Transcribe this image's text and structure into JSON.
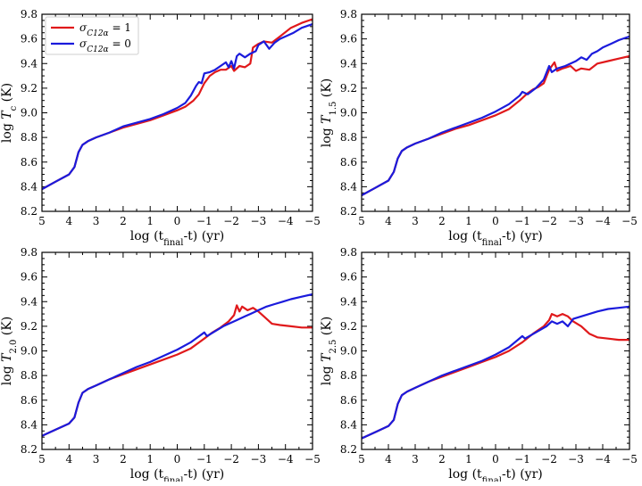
{
  "chart_data": [
    {
      "type": "line",
      "panel": "top-left",
      "ylabel": "log T_c (K)",
      "ylabel_main": "log ",
      "ylabel_sym": "T",
      "ylabel_sub": "c",
      "ylabel_unit": " (K)",
      "xlabel_pre": "log (t",
      "xlabel_sub": "final",
      "xlabel_post": "-t) (yr)",
      "xlim": [
        5,
        -5
      ],
      "ylim": [
        8.2,
        9.8
      ],
      "xticks": [
        "5",
        "4",
        "3",
        "2",
        "1",
        "0",
        "−1",
        "−2",
        "−3",
        "−4",
        "−5"
      ],
      "yticks": [
        "8.2",
        "8.4",
        "8.6",
        "8.8",
        "9.0",
        "9.2",
        "9.4",
        "9.6",
        "9.8"
      ],
      "legend": {
        "placement": "top-left",
        "entries": [
          {
            "sym": "σ",
            "sub": "C12α",
            "rest": " = 1",
            "color": "#e0191b"
          },
          {
            "sym": "σ",
            "sub": "C12α",
            "rest": " = 0",
            "color": "#1b1bdc"
          }
        ]
      },
      "series": [
        {
          "name": "σC12α = 1",
          "color": "#e0191b",
          "x": [
            5,
            4.5,
            4,
            3.8,
            3.65,
            3.5,
            3.3,
            3,
            2.5,
            2,
            1.5,
            1,
            0.5,
            0,
            -0.3,
            -0.6,
            -0.8,
            -1,
            -1.2,
            -1.4,
            -1.6,
            -1.8,
            -2,
            -2.1,
            -2.3,
            -2.5,
            -2.7,
            -2.8,
            -3,
            -3.2,
            -3.5,
            -3.8,
            -4.2,
            -4.6,
            -5
          ],
          "y": [
            8.38,
            8.44,
            8.5,
            8.56,
            8.68,
            8.74,
            8.77,
            8.8,
            8.84,
            8.88,
            8.91,
            8.94,
            8.98,
            9.02,
            9.05,
            9.1,
            9.15,
            9.24,
            9.3,
            9.33,
            9.35,
            9.35,
            9.38,
            9.34,
            9.38,
            9.37,
            9.4,
            9.53,
            9.56,
            9.58,
            9.57,
            9.62,
            9.69,
            9.73,
            9.76
          ]
        },
        {
          "name": "σC12α = 0",
          "color": "#1b1bdc",
          "x": [
            5,
            4.5,
            4,
            3.8,
            3.65,
            3.5,
            3.3,
            3,
            2.5,
            2,
            1.5,
            1,
            0.5,
            0,
            -0.3,
            -0.5,
            -0.7,
            -0.8,
            -0.9,
            -1,
            -1.2,
            -1.4,
            -1.6,
            -1.8,
            -1.9,
            -2,
            -2.1,
            -2.2,
            -2.3,
            -2.5,
            -2.7,
            -2.9,
            -3,
            -3.2,
            -3.4,
            -3.6,
            -3.8,
            -4,
            -4.3,
            -4.6,
            -5
          ],
          "y": [
            8.38,
            8.44,
            8.5,
            8.56,
            8.68,
            8.74,
            8.77,
            8.8,
            8.84,
            8.89,
            8.92,
            8.95,
            8.99,
            9.04,
            9.08,
            9.14,
            9.22,
            9.25,
            9.24,
            9.32,
            9.33,
            9.35,
            9.38,
            9.41,
            9.37,
            9.42,
            9.36,
            9.46,
            9.48,
            9.45,
            9.48,
            9.5,
            9.55,
            9.58,
            9.52,
            9.57,
            9.6,
            9.62,
            9.65,
            9.69,
            9.72
          ]
        }
      ]
    },
    {
      "type": "line",
      "panel": "top-right",
      "ylabel": "log T_1.5 (K)",
      "ylabel_main": "log ",
      "ylabel_sym": "T",
      "ylabel_sub": "1.5",
      "ylabel_unit": " (K)",
      "xlabel_pre": "log (t",
      "xlabel_sub": "final",
      "xlabel_post": "-t) (yr)",
      "xlim": [
        5,
        -5
      ],
      "ylim": [
        8.2,
        9.8
      ],
      "xticks": [
        "5",
        "4",
        "3",
        "2",
        "1",
        "0",
        "−1",
        "−2",
        "−3",
        "−4",
        "−5"
      ],
      "yticks": [
        "8.2",
        "8.4",
        "8.6",
        "8.8",
        "9.0",
        "9.2",
        "9.4",
        "9.6",
        "9.8"
      ],
      "series": [
        {
          "name": "σC12α = 1",
          "color": "#e0191b",
          "x": [
            5,
            4.5,
            4,
            3.8,
            3.65,
            3.5,
            3.3,
            3,
            2.5,
            2,
            1.5,
            1,
            0.5,
            0,
            -0.5,
            -0.9,
            -1.2,
            -1.4,
            -1.6,
            -1.8,
            -2,
            -2.2,
            -2.3,
            -2.5,
            -2.8,
            -3,
            -3.2,
            -3.5,
            -3.8,
            -4.2,
            -4.6,
            -5
          ],
          "y": [
            8.33,
            8.39,
            8.45,
            8.52,
            8.63,
            8.69,
            8.72,
            8.75,
            8.79,
            8.83,
            8.87,
            8.9,
            8.94,
            8.98,
            9.03,
            9.1,
            9.16,
            9.19,
            9.21,
            9.24,
            9.35,
            9.41,
            9.34,
            9.36,
            9.38,
            9.34,
            9.36,
            9.35,
            9.4,
            9.42,
            9.44,
            9.46
          ]
        },
        {
          "name": "σC12α = 0",
          "color": "#1b1bdc",
          "x": [
            5,
            4.5,
            4,
            3.8,
            3.65,
            3.5,
            3.3,
            3,
            2.5,
            2,
            1.5,
            1,
            0.5,
            0,
            -0.5,
            -0.9,
            -1,
            -1.2,
            -1.5,
            -1.8,
            -2,
            -2.1,
            -2.3,
            -2.6,
            -2.8,
            -3,
            -3.2,
            -3.4,
            -3.6,
            -3.8,
            -4,
            -4.3,
            -4.6,
            -5
          ],
          "y": [
            8.33,
            8.39,
            8.45,
            8.52,
            8.63,
            8.69,
            8.72,
            8.75,
            8.79,
            8.84,
            8.88,
            8.92,
            8.96,
            9.01,
            9.07,
            9.14,
            9.17,
            9.15,
            9.2,
            9.27,
            9.38,
            9.33,
            9.36,
            9.38,
            9.4,
            9.42,
            9.45,
            9.43,
            9.48,
            9.5,
            9.53,
            9.56,
            9.59,
            9.62
          ]
        }
      ]
    },
    {
      "type": "line",
      "panel": "bottom-left",
      "ylabel": "log T_2.0 (K)",
      "ylabel_main": "log ",
      "ylabel_sym": "T",
      "ylabel_sub": "2.0",
      "ylabel_unit": " (K)",
      "xlabel_pre": "log (t",
      "xlabel_sub": "final",
      "xlabel_post": "-t) (yr)",
      "xlim": [
        5,
        -5
      ],
      "ylim": [
        8.2,
        9.8
      ],
      "xticks": [
        "5",
        "4",
        "3",
        "2",
        "1",
        "0",
        "−1",
        "−2",
        "−3",
        "−4",
        "−5"
      ],
      "yticks": [
        "8.2",
        "8.4",
        "8.6",
        "8.8",
        "9.0",
        "9.2",
        "9.4",
        "9.6",
        "9.8"
      ],
      "series": [
        {
          "name": "σC12α = 1",
          "color": "#e0191b",
          "x": [
            5,
            4.5,
            4,
            3.8,
            3.65,
            3.5,
            3.3,
            3,
            2.5,
            2,
            1.5,
            1,
            0.5,
            0,
            -0.5,
            -1,
            -1.3,
            -1.6,
            -1.9,
            -2.1,
            -2.2,
            -2.3,
            -2.4,
            -2.6,
            -2.8,
            -3,
            -3.2,
            -3.5,
            -3.8,
            -4.2,
            -4.6,
            -5
          ],
          "y": [
            8.31,
            8.36,
            8.41,
            8.46,
            8.58,
            8.66,
            8.69,
            8.72,
            8.77,
            8.81,
            8.85,
            8.89,
            8.93,
            8.97,
            9.02,
            9.1,
            9.15,
            9.19,
            9.24,
            9.29,
            9.37,
            9.32,
            9.36,
            9.33,
            9.35,
            9.32,
            9.28,
            9.22,
            9.21,
            9.2,
            9.19,
            9.19
          ]
        },
        {
          "name": "σC12α = 0",
          "color": "#1b1bdc",
          "x": [
            5,
            4.5,
            4,
            3.8,
            3.65,
            3.5,
            3.3,
            3,
            2.5,
            2,
            1.5,
            1,
            0.5,
            0,
            -0.5,
            -1,
            -1.1,
            -1.4,
            -1.7,
            -2,
            -2.2,
            -2.5,
            -2.7,
            -3,
            -3.3,
            -3.6,
            -3.9,
            -4.2,
            -4.6,
            -5
          ],
          "y": [
            8.31,
            8.36,
            8.41,
            8.46,
            8.58,
            8.66,
            8.69,
            8.72,
            8.77,
            8.82,
            8.87,
            8.91,
            8.96,
            9.01,
            9.07,
            9.15,
            9.12,
            9.16,
            9.2,
            9.23,
            9.25,
            9.28,
            9.3,
            9.33,
            9.36,
            9.38,
            9.4,
            9.42,
            9.44,
            9.46
          ]
        }
      ]
    },
    {
      "type": "line",
      "panel": "bottom-right",
      "ylabel": "log T_2.5 (K)",
      "ylabel_main": "log ",
      "ylabel_sym": "T",
      "ylabel_sub": "2.5",
      "ylabel_unit": " (K)",
      "xlabel_pre": "log (t",
      "xlabel_sub": "final",
      "xlabel_post": "-t) (yr)",
      "xlim": [
        5,
        -5
      ],
      "ylim": [
        8.2,
        9.8
      ],
      "xticks": [
        "5",
        "4",
        "3",
        "2",
        "1",
        "0",
        "−1",
        "−2",
        "−3",
        "−4",
        "−5"
      ],
      "yticks": [
        "8.2",
        "8.4",
        "8.6",
        "8.8",
        "9.0",
        "9.2",
        "9.4",
        "9.6",
        "9.8"
      ],
      "series": [
        {
          "name": "σC12α = 1",
          "color": "#e0191b",
          "x": [
            5,
            4.5,
            4,
            3.8,
            3.65,
            3.5,
            3.3,
            3,
            2.5,
            2,
            1.5,
            1,
            0.5,
            0,
            -0.5,
            -1,
            -1.4,
            -1.8,
            -2,
            -2.1,
            -2.3,
            -2.5,
            -2.7,
            -2.9,
            -3.2,
            -3.5,
            -3.8,
            -4.2,
            -4.6,
            -5
          ],
          "y": [
            8.29,
            8.34,
            8.39,
            8.44,
            8.57,
            8.64,
            8.67,
            8.7,
            8.75,
            8.79,
            8.83,
            8.87,
            8.91,
            8.95,
            9,
            9.07,
            9.14,
            9.2,
            9.25,
            9.3,
            9.28,
            9.3,
            9.28,
            9.24,
            9.2,
            9.14,
            9.11,
            9.1,
            9.09,
            9.09
          ]
        },
        {
          "name": "σC12α = 0",
          "color": "#1b1bdc",
          "x": [
            5,
            4.5,
            4,
            3.8,
            3.65,
            3.5,
            3.3,
            3,
            2.5,
            2,
            1.5,
            1,
            0.5,
            0,
            -0.5,
            -1,
            -1.1,
            -1.5,
            -1.9,
            -2.1,
            -2.3,
            -2.5,
            -2.7,
            -2.9,
            -3.2,
            -3.5,
            -3.8,
            -4.2,
            -4.6,
            -5
          ],
          "y": [
            8.29,
            8.34,
            8.39,
            8.44,
            8.57,
            8.64,
            8.67,
            8.7,
            8.75,
            8.8,
            8.84,
            8.88,
            8.92,
            8.97,
            9.03,
            9.12,
            9.1,
            9.15,
            9.2,
            9.24,
            9.22,
            9.24,
            9.2,
            9.26,
            9.28,
            9.3,
            9.32,
            9.34,
            9.35,
            9.36
          ]
        }
      ]
    }
  ]
}
